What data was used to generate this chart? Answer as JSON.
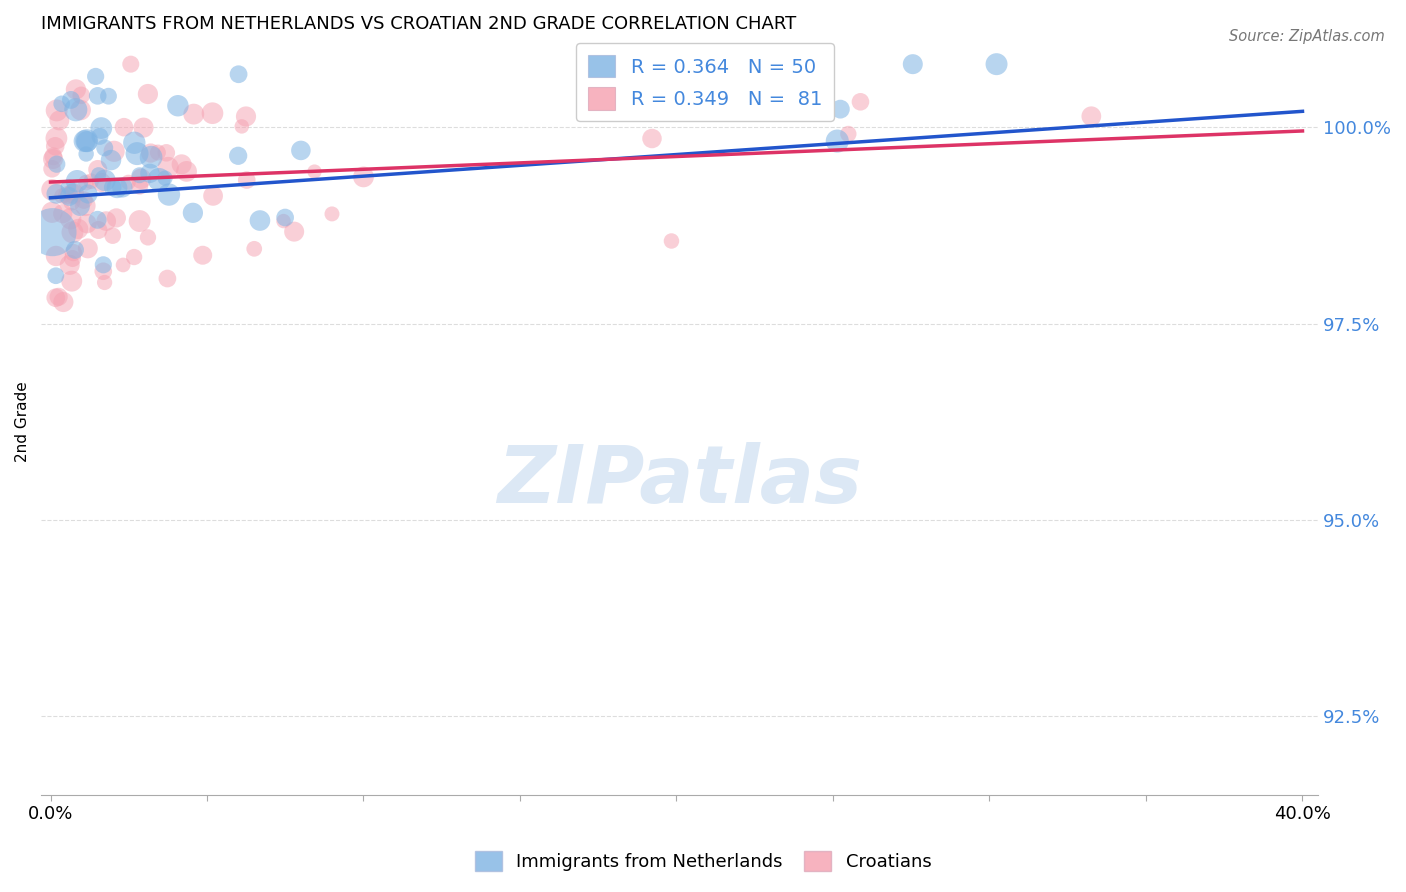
{
  "title": "IMMIGRANTS FROM NETHERLANDS VS CROATIAN 2ND GRADE CORRELATION CHART",
  "source": "Source: ZipAtlas.com",
  "ylabel": "2nd Grade",
  "y_ticks": [
    92.5,
    95.0,
    97.5,
    100.0
  ],
  "ylim_min": 91.5,
  "ylim_max": 101.0,
  "xlim_min": -0.3,
  "xlim_max": 40.5,
  "legend_netherlands": "Immigrants from Netherlands",
  "legend_croatians": "Croatians",
  "R_netherlands": 0.364,
  "N_netherlands": 50,
  "R_croatians": 0.349,
  "N_croatians": 81,
  "color_netherlands": "#7EB3E3",
  "color_croatians": "#F5A0B0",
  "color_trend_netherlands": "#2255CC",
  "color_trend_croatians": "#DD3366",
  "watermark_color": "#DCE8F5",
  "grid_color": "#DDDDDD",
  "ytick_color": "#4488DD"
}
